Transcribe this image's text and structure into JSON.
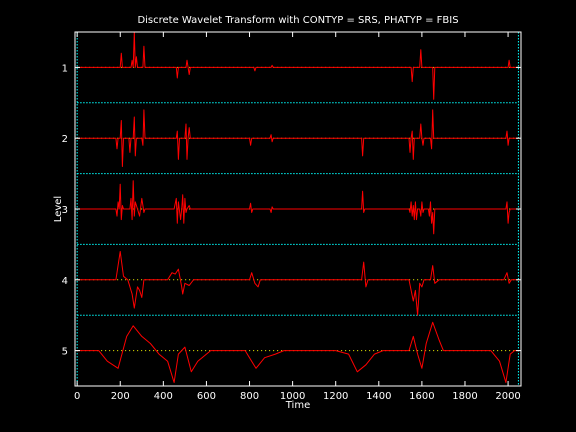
{
  "chart_data": {
    "type": "line",
    "title": "Discrete Wavelet Transform with CONTYP = SRS, PHATYP = FBIS",
    "xlabel": "Time",
    "ylabel": "Level",
    "xlim": [
      -10,
      2060
    ],
    "ylim": [
      5.5,
      0.5
    ],
    "x_ticks": [
      0,
      200,
      400,
      600,
      800,
      1000,
      1200,
      1400,
      1600,
      1800,
      2000
    ],
    "y_ticks": [
      1,
      2,
      3,
      4,
      5
    ],
    "grid": false,
    "colors": {
      "background": "#000000",
      "axes": "#ffffff",
      "series": "#ff0000",
      "baseline": "#ffff00",
      "bands": "#00ffff"
    },
    "band_boundaries": [
      0.5,
      1.5,
      2.5,
      3.5,
      4.5,
      5.5
    ],
    "band_x_range": [
      0,
      2048
    ],
    "series": [
      {
        "level": 1,
        "points": [
          [
            0,
            1
          ],
          [
            200,
            1
          ],
          [
            205,
            0.8
          ],
          [
            210,
            1
          ],
          [
            250,
            1
          ],
          [
            255,
            0.9
          ],
          [
            260,
            1
          ],
          [
            265,
            0.5
          ],
          [
            270,
            1
          ],
          [
            275,
            0.85
          ],
          [
            280,
            1
          ],
          [
            305,
            1
          ],
          [
            310,
            0.7
          ],
          [
            315,
            1
          ],
          [
            460,
            1
          ],
          [
            465,
            1.15
          ],
          [
            470,
            1
          ],
          [
            505,
            1
          ],
          [
            510,
            0.9
          ],
          [
            515,
            1
          ],
          [
            520,
            1.1
          ],
          [
            525,
            1
          ],
          [
            820,
            1
          ],
          [
            825,
            1.05
          ],
          [
            830,
            1
          ],
          [
            900,
            1
          ],
          [
            905,
            0.97
          ],
          [
            910,
            1
          ],
          [
            1550,
            1
          ],
          [
            1555,
            1.2
          ],
          [
            1560,
            1
          ],
          [
            1590,
            1
          ],
          [
            1595,
            0.75
          ],
          [
            1600,
            1
          ],
          [
            1650,
            1
          ],
          [
            1655,
            1.45
          ],
          [
            1660,
            1
          ],
          [
            2000,
            1
          ],
          [
            2005,
            0.9
          ],
          [
            2010,
            1
          ],
          [
            2048,
            1
          ]
        ]
      },
      {
        "level": 2,
        "points": [
          [
            0,
            2
          ],
          [
            180,
            2
          ],
          [
            185,
            2.15
          ],
          [
            190,
            2
          ],
          [
            200,
            2
          ],
          [
            205,
            1.75
          ],
          [
            210,
            2.4
          ],
          [
            215,
            2
          ],
          [
            240,
            2
          ],
          [
            245,
            2.2
          ],
          [
            250,
            2
          ],
          [
            260,
            2
          ],
          [
            265,
            1.7
          ],
          [
            270,
            2.25
          ],
          [
            275,
            2
          ],
          [
            300,
            2
          ],
          [
            305,
            2.1
          ],
          [
            310,
            1.6
          ],
          [
            315,
            2
          ],
          [
            460,
            2
          ],
          [
            465,
            1.9
          ],
          [
            470,
            2.3
          ],
          [
            475,
            2
          ],
          [
            500,
            2
          ],
          [
            505,
            1.8
          ],
          [
            510,
            2.3
          ],
          [
            515,
            2
          ],
          [
            520,
            1.85
          ],
          [
            525,
            2
          ],
          [
            800,
            2
          ],
          [
            805,
            2.1
          ],
          [
            810,
            2
          ],
          [
            895,
            2
          ],
          [
            900,
            1.95
          ],
          [
            905,
            2.05
          ],
          [
            910,
            2
          ],
          [
            1320,
            2
          ],
          [
            1325,
            2.25
          ],
          [
            1330,
            2
          ],
          [
            1540,
            2
          ],
          [
            1545,
            2.2
          ],
          [
            1550,
            2
          ],
          [
            1555,
            1.9
          ],
          [
            1560,
            2.3
          ],
          [
            1565,
            2
          ],
          [
            1590,
            2
          ],
          [
            1595,
            1.8
          ],
          [
            1600,
            2
          ],
          [
            1605,
            2.1
          ],
          [
            1610,
            2
          ],
          [
            1640,
            2
          ],
          [
            1645,
            2.15
          ],
          [
            1650,
            1.6
          ],
          [
            1655,
            2
          ],
          [
            1990,
            2
          ],
          [
            1995,
            1.9
          ],
          [
            2000,
            2.1
          ],
          [
            2005,
            2
          ],
          [
            2048,
            2
          ]
        ]
      },
      {
        "level": 3,
        "points": [
          [
            0,
            3
          ],
          [
            180,
            3
          ],
          [
            185,
            3.1
          ],
          [
            190,
            2.9
          ],
          [
            195,
            3
          ],
          [
            200,
            2.65
          ],
          [
            205,
            3.15
          ],
          [
            210,
            2.95
          ],
          [
            215,
            3
          ],
          [
            245,
            3
          ],
          [
            250,
            2.85
          ],
          [
            255,
            3.15
          ],
          [
            260,
            2.6
          ],
          [
            265,
            3.1
          ],
          [
            270,
            2.9
          ],
          [
            280,
            3
          ],
          [
            290,
            3.1
          ],
          [
            300,
            2.85
          ],
          [
            305,
            2.95
          ],
          [
            310,
            3.05
          ],
          [
            315,
            3
          ],
          [
            450,
            3
          ],
          [
            460,
            2.85
          ],
          [
            465,
            3.2
          ],
          [
            470,
            2.9
          ],
          [
            480,
            3.15
          ],
          [
            485,
            3
          ],
          [
            490,
            2.8
          ],
          [
            495,
            3.2
          ],
          [
            500,
            2.85
          ],
          [
            505,
            3.05
          ],
          [
            510,
            3
          ],
          [
            520,
            2.95
          ],
          [
            525,
            3
          ],
          [
            800,
            3
          ],
          [
            805,
            2.92
          ],
          [
            810,
            3.05
          ],
          [
            815,
            3
          ],
          [
            895,
            3
          ],
          [
            900,
            3.05
          ],
          [
            905,
            2.97
          ],
          [
            910,
            3
          ],
          [
            1320,
            3
          ],
          [
            1325,
            2.75
          ],
          [
            1330,
            3.05
          ],
          [
            1335,
            3
          ],
          [
            1540,
            3
          ],
          [
            1545,
            3.05
          ],
          [
            1550,
            2.9
          ],
          [
            1555,
            3.1
          ],
          [
            1560,
            2.95
          ],
          [
            1565,
            3.15
          ],
          [
            1570,
            2.9
          ],
          [
            1575,
            3.15
          ],
          [
            1580,
            3
          ],
          [
            1590,
            3
          ],
          [
            1595,
            3.1
          ],
          [
            1600,
            2.9
          ],
          [
            1605,
            3.05
          ],
          [
            1610,
            3
          ],
          [
            1630,
            3
          ],
          [
            1635,
            3.1
          ],
          [
            1640,
            2.9
          ],
          [
            1645,
            3.2
          ],
          [
            1650,
            3.05
          ],
          [
            1655,
            3.35
          ],
          [
            1660,
            3
          ],
          [
            1990,
            3
          ],
          [
            1995,
            2.9
          ],
          [
            2000,
            3.2
          ],
          [
            2005,
            3.05
          ],
          [
            2010,
            3
          ],
          [
            2048,
            3
          ]
        ]
      },
      {
        "level": 4,
        "points": [
          [
            0,
            4
          ],
          [
            180,
            4
          ],
          [
            200,
            3.6
          ],
          [
            215,
            3.95
          ],
          [
            235,
            4
          ],
          [
            255,
            4.2
          ],
          [
            265,
            4.4
          ],
          [
            280,
            4.1
          ],
          [
            290,
            4.15
          ],
          [
            300,
            4.25
          ],
          [
            310,
            4.0
          ],
          [
            320,
            4
          ],
          [
            420,
            4
          ],
          [
            440,
            3.9
          ],
          [
            455,
            3.92
          ],
          [
            470,
            3.85
          ],
          [
            485,
            4.1
          ],
          [
            490,
            4.2
          ],
          [
            500,
            4.05
          ],
          [
            520,
            4.08
          ],
          [
            540,
            4
          ],
          [
            800,
            4
          ],
          [
            810,
            3.9
          ],
          [
            825,
            4.05
          ],
          [
            840,
            4.1
          ],
          [
            850,
            4
          ],
          [
            1320,
            4
          ],
          [
            1330,
            3.75
          ],
          [
            1340,
            4.1
          ],
          [
            1350,
            4
          ],
          [
            1540,
            4
          ],
          [
            1560,
            4.3
          ],
          [
            1570,
            4.15
          ],
          [
            1580,
            4.5
          ],
          [
            1590,
            4.05
          ],
          [
            1600,
            4.1
          ],
          [
            1610,
            4
          ],
          [
            1640,
            4
          ],
          [
            1650,
            3.8
          ],
          [
            1660,
            4.05
          ],
          [
            1680,
            4
          ],
          [
            1980,
            4
          ],
          [
            1995,
            3.9
          ],
          [
            2005,
            4.05
          ],
          [
            2015,
            4
          ],
          [
            2048,
            4
          ]
        ]
      },
      {
        "level": 5,
        "points": [
          [
            0,
            5
          ],
          [
            100,
            5
          ],
          [
            140,
            5.15
          ],
          [
            190,
            5.25
          ],
          [
            230,
            4.8
          ],
          [
            260,
            4.65
          ],
          [
            300,
            4.8
          ],
          [
            340,
            4.9
          ],
          [
            380,
            5.05
          ],
          [
            420,
            5.15
          ],
          [
            450,
            5.45
          ],
          [
            470,
            5.05
          ],
          [
            500,
            4.95
          ],
          [
            530,
            5.3
          ],
          [
            560,
            5.15
          ],
          [
            620,
            5
          ],
          [
            780,
            5
          ],
          [
            800,
            5.1
          ],
          [
            830,
            5.25
          ],
          [
            870,
            5.1
          ],
          [
            920,
            5.05
          ],
          [
            960,
            5.0
          ],
          [
            1000,
            5
          ],
          [
            1200,
            5
          ],
          [
            1260,
            5.05
          ],
          [
            1300,
            5.3
          ],
          [
            1340,
            5.2
          ],
          [
            1380,
            5.05
          ],
          [
            1420,
            5.0
          ],
          [
            1540,
            5
          ],
          [
            1560,
            4.8
          ],
          [
            1580,
            5.05
          ],
          [
            1600,
            5.25
          ],
          [
            1620,
            4.9
          ],
          [
            1650,
            4.6
          ],
          [
            1680,
            4.85
          ],
          [
            1700,
            5
          ],
          [
            1920,
            5
          ],
          [
            1960,
            5.15
          ],
          [
            1990,
            5.45
          ],
          [
            2010,
            5.05
          ],
          [
            2030,
            5
          ],
          [
            2048,
            5
          ]
        ]
      }
    ]
  }
}
